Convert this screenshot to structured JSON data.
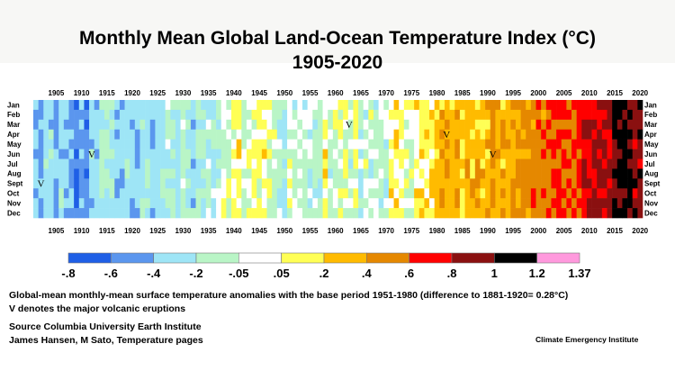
{
  "title_line1": "Monthly Mean Global Land-Ocean Temperature Index (°C)",
  "title_line2": "1905-2020",
  "note_line1": "Global-mean monthly-mean surface temperature anomalies with the base period 1951-1980 (difference to 1881-1920=  0.28°C)",
  "note_line2": "V denotes the major volcanic eruptions",
  "source_line1": "Source Columbia University Earth Institute",
  "source_line2": "James Hansen, M Sato, Temperature pages",
  "credit": "Climate Emergency Institute",
  "volcano_marker": "V",
  "chart_data": {
    "type": "heatmap",
    "x_range": [
      1905,
      2020
    ],
    "x_tick_labels": [
      "1905",
      "1910",
      "1915",
      "1920",
      "1925",
      "1930",
      "1935",
      "1940",
      "1945",
      "1950",
      "1955",
      "1960",
      "1965",
      "1970",
      "1975",
      "1980",
      "1985",
      "1990",
      "1995",
      "2000",
      "2005",
      "2010",
      "2015",
      "2020"
    ],
    "y_labels": [
      "Jan",
      "Feb",
      "Mar",
      "Apr",
      "May",
      "Jun",
      "Jul",
      "Aug",
      "Sept",
      "Oct",
      "Nov",
      "Dec"
    ],
    "color_scale": {
      "tick_labels": [
        "-.8",
        "-.6",
        "-.4",
        "-.2",
        "-.05",
        ".05",
        ".2",
        ".4",
        ".6",
        ".8",
        "1",
        "1.2",
        "1.37"
      ],
      "bins": [
        {
          "from": -0.8,
          "to": -0.6,
          "color": "#1f5fe6"
        },
        {
          "from": -0.6,
          "to": -0.4,
          "color": "#5b96ee"
        },
        {
          "from": -0.4,
          "to": -0.2,
          "color": "#9ee5f6"
        },
        {
          "from": -0.2,
          "to": -0.05,
          "color": "#b9f5c6"
        },
        {
          "from": -0.05,
          "to": 0.05,
          "color": "#ffffff"
        },
        {
          "from": 0.05,
          "to": 0.2,
          "color": "#ffff55"
        },
        {
          "from": 0.2,
          "to": 0.4,
          "color": "#ffbb00"
        },
        {
          "from": 0.4,
          "to": 0.6,
          "color": "#e58800"
        },
        {
          "from": 0.6,
          "to": 0.8,
          "color": "#ff0000"
        },
        {
          "from": 0.8,
          "to": 1.0,
          "color": "#8a1010"
        },
        {
          "from": 1.0,
          "to": 1.2,
          "color": "#000000"
        },
        {
          "from": 1.2,
          "to": 1.37,
          "color": "#ff99dd"
        }
      ]
    },
    "decadal_anomaly_estimate": [
      {
        "year": 1905,
        "value": -0.35
      },
      {
        "year": 1910,
        "value": -0.45
      },
      {
        "year": 1915,
        "value": -0.3
      },
      {
        "year": 1920,
        "value": -0.3
      },
      {
        "year": 1925,
        "value": -0.25
      },
      {
        "year": 1930,
        "value": -0.2
      },
      {
        "year": 1935,
        "value": -0.15
      },
      {
        "year": 1940,
        "value": 0.05
      },
      {
        "year": 1945,
        "value": 0.05
      },
      {
        "year": 1950,
        "value": -0.15
      },
      {
        "year": 1955,
        "value": -0.1
      },
      {
        "year": 1960,
        "value": 0.0
      },
      {
        "year": 1965,
        "value": -0.05
      },
      {
        "year": 1970,
        "value": 0.0
      },
      {
        "year": 1975,
        "value": 0.05
      },
      {
        "year": 1980,
        "value": 0.25
      },
      {
        "year": 1985,
        "value": 0.3
      },
      {
        "year": 1990,
        "value": 0.4
      },
      {
        "year": 1995,
        "value": 0.45
      },
      {
        "year": 2000,
        "value": 0.55
      },
      {
        "year": 2005,
        "value": 0.65
      },
      {
        "year": 2010,
        "value": 0.7
      },
      {
        "year": 2015,
        "value": 0.95
      },
      {
        "year": 2020,
        "value": 1.0
      }
    ],
    "volcanic_eruptions": [
      {
        "year": 1902.5,
        "month": "Sept"
      },
      {
        "year": 1912.5,
        "month": "Jun"
      },
      {
        "year": 1963.2,
        "month": "Mar"
      },
      {
        "year": 1982.4,
        "month": "Apr"
      },
      {
        "year": 1991.5,
        "month": "Jun"
      }
    ]
  }
}
